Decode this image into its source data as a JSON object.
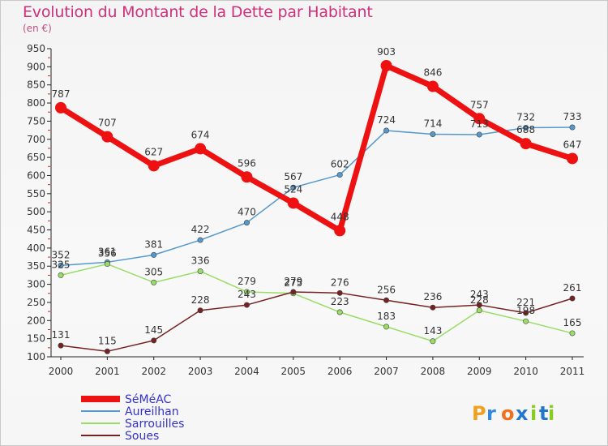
{
  "header": {
    "title": "Evolution du Montant de la Dette par Habitant",
    "subtitle": "(en €)"
  },
  "logo": {
    "text": "Proxiti"
  },
  "chart_data": {
    "type": "line",
    "title": "Evolution du Montant de la Dette par Habitant",
    "subtitle": "(en €)",
    "xlabel": "",
    "ylabel": "",
    "x": [
      "2000",
      "2001",
      "2002",
      "2003",
      "2004",
      "2005",
      "2006",
      "2007",
      "2008",
      "2009",
      "2010",
      "2011"
    ],
    "ylim": [
      100,
      950
    ],
    "yticks": [
      100,
      150,
      200,
      250,
      300,
      350,
      400,
      450,
      500,
      550,
      600,
      650,
      700,
      750,
      800,
      850,
      900,
      950
    ],
    "grid": false,
    "legend_position": "bottom-left",
    "series": [
      {
        "name": "SéMéAC",
        "color": "#ee1111",
        "values": [
          787,
          707,
          627,
          674,
          596,
          524,
          448,
          903,
          846,
          757,
          688,
          647
        ]
      },
      {
        "name": "Aureilhan",
        "color": "#5599cc",
        "values": [
          352,
          361,
          381,
          422,
          470,
          567,
          602,
          724,
          714,
          713,
          732,
          733
        ]
      },
      {
        "name": "Sarrouilles",
        "color": "#99dd66",
        "values": [
          325,
          356,
          305,
          336,
          279,
          275,
          223,
          183,
          143,
          228,
          198,
          165
        ]
      },
      {
        "name": "Soues",
        "color": "#772222",
        "values": [
          131,
          115,
          145,
          228,
          243,
          279,
          276,
          256,
          236,
          243,
          221,
          261
        ]
      }
    ]
  }
}
